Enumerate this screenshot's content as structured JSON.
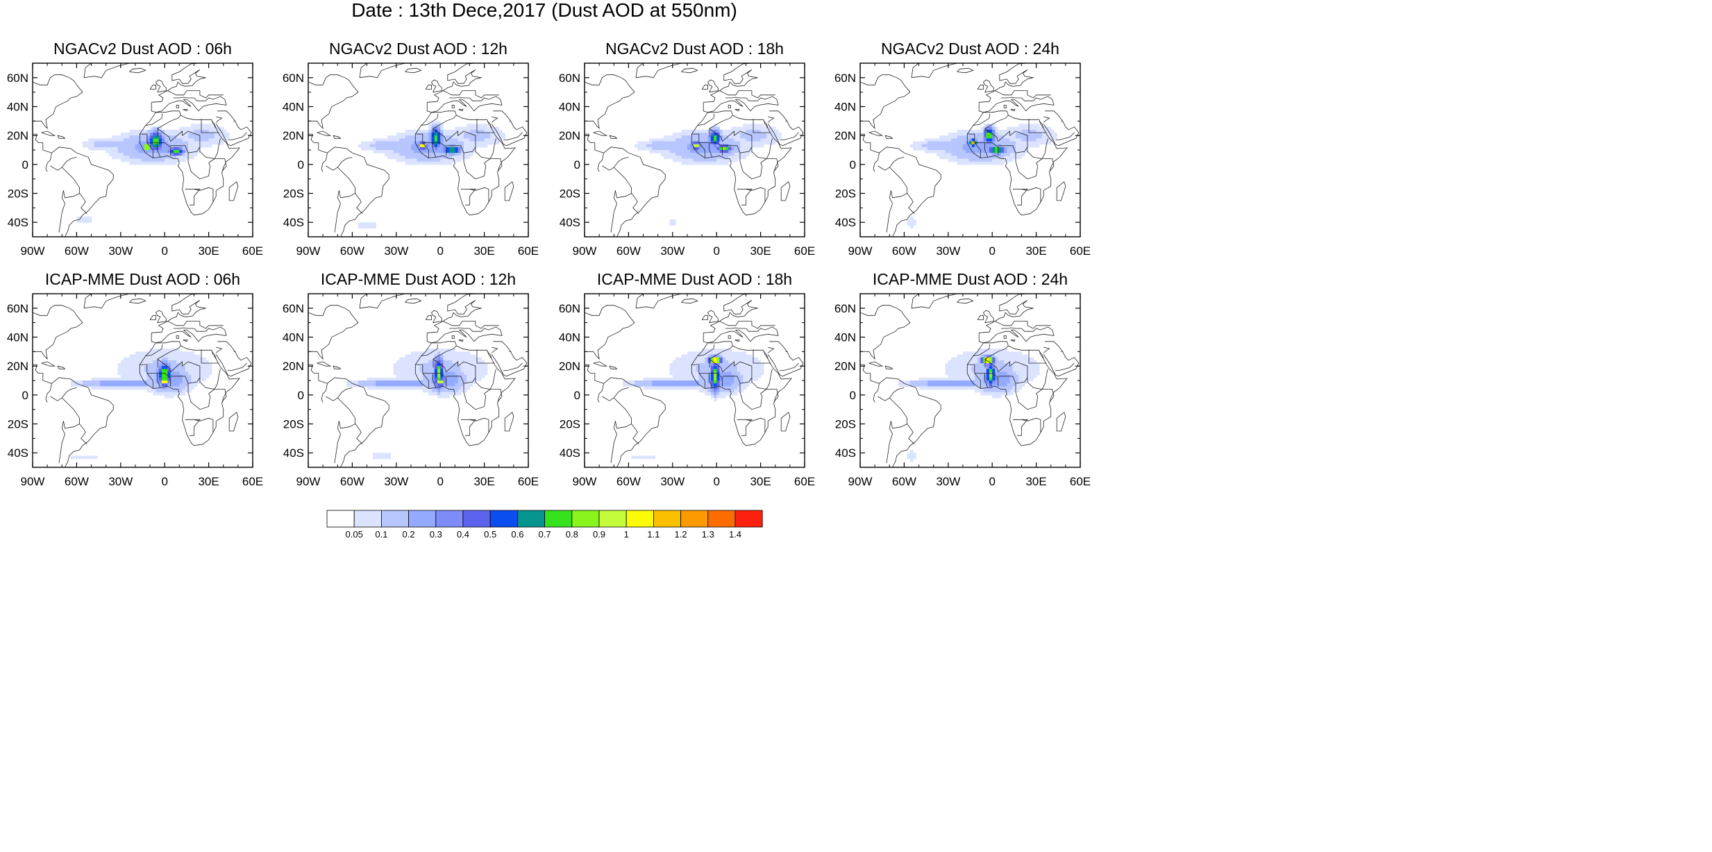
{
  "figure": {
    "title": "Date : 13th Dece,2017 (Dust AOD at 550nm)"
  },
  "map_extent": {
    "lon": [
      -90,
      60
    ],
    "lat": [
      -50,
      70
    ]
  },
  "axes": {
    "lat_ticks": [
      60,
      40,
      20,
      0,
      -20,
      -40
    ],
    "lat_labels": [
      "60N",
      "40N",
      "20N",
      "0",
      "20S",
      "40S"
    ],
    "lon_ticks": [
      -90,
      -60,
      -30,
      0,
      30,
      60
    ],
    "lon_labels": [
      "90W",
      "60W",
      "30W",
      "0",
      "30E",
      "60E"
    ]
  },
  "panels": [
    {
      "title": "NGACv2 Dust AOD : 06h",
      "model": "NGACv2",
      "hour": 6,
      "blobs": [
        {
          "lon": -8,
          "lat": 12,
          "rx": 28,
          "ry": 11,
          "v": 0.25
        },
        {
          "lon": -35,
          "lat": 14,
          "rx": 22,
          "ry": 5,
          "v": 0.15
        },
        {
          "lon": 25,
          "lat": 20,
          "rx": 22,
          "ry": 9,
          "v": 0.12
        },
        {
          "lon": -6,
          "lat": 16,
          "rx": 6,
          "ry": 7,
          "v": 0.8
        },
        {
          "lon": 8,
          "lat": 9,
          "rx": 6,
          "ry": 3,
          "v": 0.75
        },
        {
          "lon": -12,
          "lat": 12,
          "rx": 3,
          "ry": 2.5,
          "v": 1.15
        },
        {
          "lon": -55,
          "lat": -38,
          "rx": 8,
          "ry": 3,
          "v": 0.08
        }
      ]
    },
    {
      "title": "NGACv2 Dust AOD : 12h",
      "model": "NGACv2",
      "hour": 12,
      "blobs": [
        {
          "lon": -8,
          "lat": 12,
          "rx": 28,
          "ry": 11,
          "v": 0.25
        },
        {
          "lon": -35,
          "lat": 13,
          "rx": 22,
          "ry": 5,
          "v": 0.15
        },
        {
          "lon": 25,
          "lat": 20,
          "rx": 22,
          "ry": 9,
          "v": 0.12
        },
        {
          "lon": -3,
          "lat": 18,
          "rx": 4,
          "ry": 8,
          "v": 0.8
        },
        {
          "lon": 8,
          "lat": 10,
          "rx": 6,
          "ry": 3,
          "v": 0.8
        },
        {
          "lon": -12,
          "lat": 13,
          "rx": 3,
          "ry": 2.5,
          "v": 1.15
        },
        {
          "lon": -50,
          "lat": -42,
          "rx": 10,
          "ry": 3,
          "v": 0.08
        }
      ]
    },
    {
      "title": "NGACv2 Dust AOD : 18h",
      "model": "NGACv2",
      "hour": 18,
      "blobs": [
        {
          "lon": -8,
          "lat": 12,
          "rx": 28,
          "ry": 11,
          "v": 0.25
        },
        {
          "lon": -35,
          "lat": 13,
          "rx": 22,
          "ry": 5,
          "v": 0.15
        },
        {
          "lon": 25,
          "lat": 20,
          "rx": 22,
          "ry": 9,
          "v": 0.12
        },
        {
          "lon": -1,
          "lat": 18,
          "rx": 4,
          "ry": 6,
          "v": 0.8
        },
        {
          "lon": 5,
          "lat": 11,
          "rx": 6,
          "ry": 3,
          "v": 0.8
        },
        {
          "lon": -14,
          "lat": 13,
          "rx": 3,
          "ry": 2.5,
          "v": 1.1
        },
        {
          "lon": -30,
          "lat": -40,
          "rx": 6,
          "ry": 2,
          "v": 0.08
        }
      ]
    },
    {
      "title": "NGACv2 Dust AOD : 24h",
      "model": "NGACv2",
      "hour": 24,
      "blobs": [
        {
          "lon": -8,
          "lat": 12,
          "rx": 28,
          "ry": 11,
          "v": 0.25
        },
        {
          "lon": -35,
          "lat": 13,
          "rx": 22,
          "ry": 5,
          "v": 0.15
        },
        {
          "lon": 25,
          "lat": 20,
          "rx": 22,
          "ry": 9,
          "v": 0.12
        },
        {
          "lon": -2,
          "lat": 20,
          "rx": 4,
          "ry": 6,
          "v": 0.8
        },
        {
          "lon": 3,
          "lat": 10,
          "rx": 6,
          "ry": 3,
          "v": 0.8
        },
        {
          "lon": -13,
          "lat": 15,
          "rx": 3,
          "ry": 2.5,
          "v": 1.1
        },
        {
          "lon": -55,
          "lat": -40,
          "rx": 4,
          "ry": 5,
          "v": 0.08
        }
      ]
    },
    {
      "title": "ICAP-MME Dust AOD : 06h",
      "model": "ICAP-MME",
      "hour": 6,
      "blobs": [
        {
          "lon": 0,
          "lat": 18,
          "rx": 38,
          "ry": 16,
          "v": 0.12
        },
        {
          "lon": -28,
          "lat": 8,
          "rx": 30,
          "ry": 3,
          "v": 0.32
        },
        {
          "lon": 3,
          "lat": 11,
          "rx": 16,
          "ry": 10,
          "v": 0.3
        },
        {
          "lon": 0,
          "lat": 14,
          "rx": 5,
          "ry": 9,
          "v": 0.85
        },
        {
          "lon": 0,
          "lat": 9,
          "rx": 3,
          "ry": 2.5,
          "v": 1.15
        },
        {
          "lon": -55,
          "lat": -43,
          "rx": 14,
          "ry": 3,
          "v": 0.08
        }
      ]
    },
    {
      "title": "ICAP-MME Dust AOD : 12h",
      "model": "ICAP-MME",
      "hour": 12,
      "blobs": [
        {
          "lon": 0,
          "lat": 18,
          "rx": 38,
          "ry": 16,
          "v": 0.12
        },
        {
          "lon": -28,
          "lat": 8,
          "rx": 30,
          "ry": 3,
          "v": 0.32
        },
        {
          "lon": 3,
          "lat": 11,
          "rx": 16,
          "ry": 10,
          "v": 0.3
        },
        {
          "lon": -1,
          "lat": 15,
          "rx": 3.5,
          "ry": 11,
          "v": 0.85
        },
        {
          "lon": 0,
          "lat": 9,
          "rx": 3,
          "ry": 2.5,
          "v": 1.1
        },
        {
          "lon": -40,
          "lat": -42,
          "rx": 14,
          "ry": 2.5,
          "v": 0.08
        }
      ]
    },
    {
      "title": "ICAP-MME Dust AOD : 18h",
      "model": "ICAP-MME",
      "hour": 18,
      "blobs": [
        {
          "lon": 0,
          "lat": 18,
          "rx": 38,
          "ry": 16,
          "v": 0.12
        },
        {
          "lon": -28,
          "lat": 8,
          "rx": 30,
          "ry": 3,
          "v": 0.32
        },
        {
          "lon": 3,
          "lat": 11,
          "rx": 16,
          "ry": 10,
          "v": 0.3
        },
        {
          "lon": -1,
          "lat": 13,
          "rx": 3.5,
          "ry": 11,
          "v": 0.85
        },
        {
          "lon": -1,
          "lat": 24,
          "rx": 5,
          "ry": 3,
          "v": 1.2
        },
        {
          "lon": -50,
          "lat": -43,
          "rx": 12,
          "ry": 2.5,
          "v": 0.08
        }
      ]
    },
    {
      "title": "ICAP-MME Dust AOD : 24h",
      "model": "ICAP-MME",
      "hour": 24,
      "blobs": [
        {
          "lon": 0,
          "lat": 18,
          "rx": 38,
          "ry": 16,
          "v": 0.12
        },
        {
          "lon": -28,
          "lat": 8,
          "rx": 30,
          "ry": 3,
          "v": 0.32
        },
        {
          "lon": 3,
          "lat": 11,
          "rx": 16,
          "ry": 10,
          "v": 0.3
        },
        {
          "lon": -1,
          "lat": 14,
          "rx": 3.5,
          "ry": 9,
          "v": 0.85
        },
        {
          "lon": -3,
          "lat": 24,
          "rx": 5,
          "ry": 3,
          "v": 1.2
        },
        {
          "lon": -55,
          "lat": -42,
          "rx": 4,
          "ry": 6,
          "v": 0.08
        }
      ]
    }
  ],
  "colorbar": {
    "colors": [
      "#ffffff",
      "#dbe3ff",
      "#b8c6ff",
      "#94aaff",
      "#7d8cf7",
      "#5c63ed",
      "#0a4ef0",
      "#06948f",
      "#35e21c",
      "#89f51c",
      "#c2fc3a",
      "#fbfb08",
      "#fcc000",
      "#fc9a00",
      "#fc6d00",
      "#fc2010"
    ],
    "levels": [
      "0.05",
      "0.1",
      "0.2",
      "0.3",
      "0.4",
      "0.5",
      "0.6",
      "0.7",
      "0.8",
      "0.9",
      "1",
      "1.1",
      "1.2",
      "1.3",
      "1.4"
    ],
    "level_values": [
      0.05,
      0.1,
      0.2,
      0.3,
      0.4,
      0.5,
      0.6,
      0.7,
      0.8,
      0.9,
      1.0,
      1.1,
      1.2,
      1.3,
      1.4
    ]
  }
}
